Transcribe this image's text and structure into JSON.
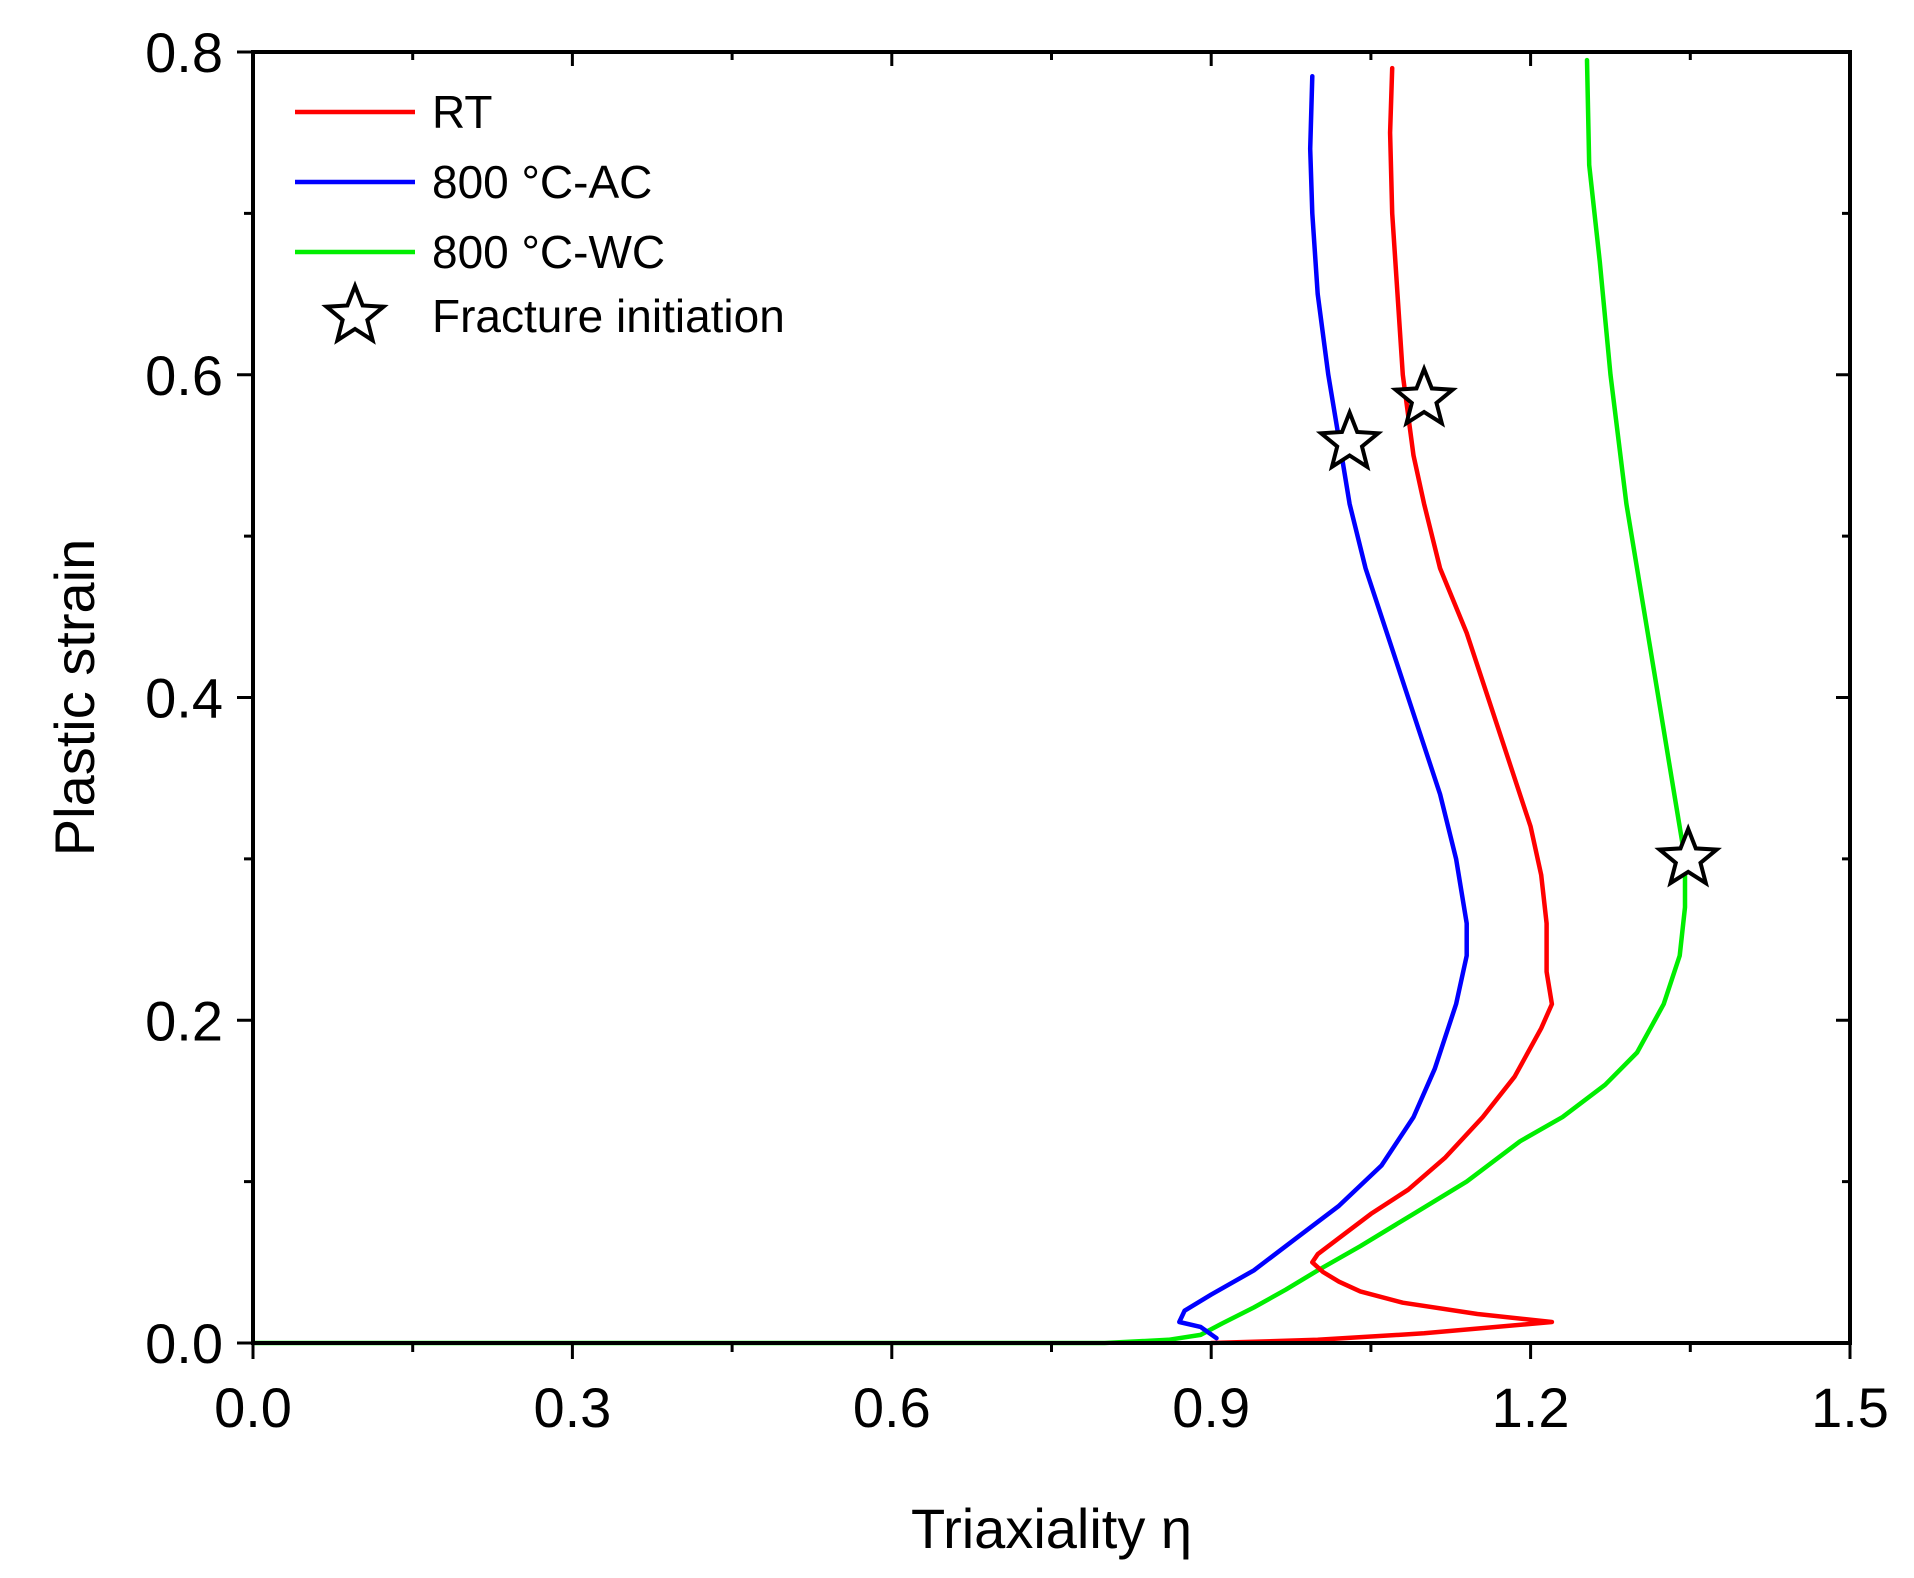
{
  "chart_data": {
    "type": "line",
    "title": "",
    "xlabel": "Triaxiality η",
    "ylabel": "Plastic strain",
    "xlim": [
      0.0,
      1.5
    ],
    "ylim": [
      0.0,
      0.8
    ],
    "xticks": [
      "0.0",
      "0.3",
      "0.6",
      "0.9",
      "1.2",
      "1.5"
    ],
    "yticks": [
      "0.0",
      "0.2",
      "0.4",
      "0.6",
      "0.8"
    ],
    "xtick_values": [
      0.0,
      0.3,
      0.6,
      0.9,
      1.2,
      1.5
    ],
    "ytick_values": [
      0.0,
      0.2,
      0.4,
      0.6,
      0.8
    ],
    "grid": false,
    "legend_position": "top-left",
    "series": [
      {
        "name": "RT",
        "color": "#ff0000",
        "points": [
          [
            0.9,
            0.0
          ],
          [
            1.0,
            0.002
          ],
          [
            1.1,
            0.006
          ],
          [
            1.22,
            0.013
          ],
          [
            1.15,
            0.018
          ],
          [
            1.08,
            0.025
          ],
          [
            1.04,
            0.032
          ],
          [
            1.02,
            0.038
          ],
          [
            1.005,
            0.044
          ],
          [
            0.995,
            0.05
          ],
          [
            1.0,
            0.055
          ],
          [
            1.02,
            0.065
          ],
          [
            1.05,
            0.08
          ],
          [
            1.085,
            0.095
          ],
          [
            1.12,
            0.115
          ],
          [
            1.155,
            0.14
          ],
          [
            1.185,
            0.165
          ],
          [
            1.21,
            0.195
          ],
          [
            1.22,
            0.21
          ],
          [
            1.215,
            0.23
          ],
          [
            1.215,
            0.26
          ],
          [
            1.21,
            0.29
          ],
          [
            1.2,
            0.32
          ],
          [
            1.18,
            0.36
          ],
          [
            1.16,
            0.4
          ],
          [
            1.14,
            0.44
          ],
          [
            1.115,
            0.48
          ],
          [
            1.1,
            0.52
          ],
          [
            1.09,
            0.55
          ],
          [
            1.08,
            0.6
          ],
          [
            1.075,
            0.65
          ],
          [
            1.07,
            0.7
          ],
          [
            1.068,
            0.75
          ],
          [
            1.07,
            0.79
          ]
        ]
      },
      {
        "name": "800 °C-AC",
        "color": "#0000ff",
        "points": [
          [
            0.905,
            0.003
          ],
          [
            0.89,
            0.01
          ],
          [
            0.87,
            0.013
          ],
          [
            0.875,
            0.02
          ],
          [
            0.9,
            0.03
          ],
          [
            0.94,
            0.045
          ],
          [
            0.98,
            0.065
          ],
          [
            1.02,
            0.085
          ],
          [
            1.06,
            0.11
          ],
          [
            1.09,
            0.14
          ],
          [
            1.11,
            0.17
          ],
          [
            1.13,
            0.21
          ],
          [
            1.14,
            0.24
          ],
          [
            1.14,
            0.26
          ],
          [
            1.13,
            0.3
          ],
          [
            1.115,
            0.34
          ],
          [
            1.095,
            0.38
          ],
          [
            1.07,
            0.43
          ],
          [
            1.045,
            0.48
          ],
          [
            1.03,
            0.52
          ],
          [
            1.02,
            0.56
          ],
          [
            1.01,
            0.6
          ],
          [
            1.0,
            0.65
          ],
          [
            0.995,
            0.7
          ],
          [
            0.993,
            0.74
          ],
          [
            0.995,
            0.785
          ]
        ]
      },
      {
        "name": "800 °C-WC",
        "color": "#00ee00",
        "points": [
          [
            0.0,
            0.0
          ],
          [
            0.6,
            0.0
          ],
          [
            0.8,
            0.0
          ],
          [
            0.86,
            0.002
          ],
          [
            0.89,
            0.005
          ],
          [
            0.91,
            0.012
          ],
          [
            0.94,
            0.022
          ],
          [
            0.97,
            0.033
          ],
          [
            1.0,
            0.045
          ],
          [
            1.04,
            0.06
          ],
          [
            1.09,
            0.08
          ],
          [
            1.14,
            0.1
          ],
          [
            1.19,
            0.125
          ],
          [
            1.23,
            0.14
          ],
          [
            1.27,
            0.16
          ],
          [
            1.3,
            0.18
          ],
          [
            1.325,
            0.21
          ],
          [
            1.34,
            0.24
          ],
          [
            1.345,
            0.27
          ],
          [
            1.345,
            0.3
          ],
          [
            1.335,
            0.34
          ],
          [
            1.32,
            0.4
          ],
          [
            1.305,
            0.46
          ],
          [
            1.29,
            0.52
          ],
          [
            1.275,
            0.6
          ],
          [
            1.265,
            0.67
          ],
          [
            1.255,
            0.73
          ],
          [
            1.253,
            0.795
          ]
        ]
      }
    ],
    "markers": {
      "name": "Fracture initiation",
      "shape": "star",
      "points": [
        [
          1.03,
          0.558
        ],
        [
          1.1,
          0.585
        ],
        [
          1.348,
          0.3
        ]
      ]
    }
  }
}
